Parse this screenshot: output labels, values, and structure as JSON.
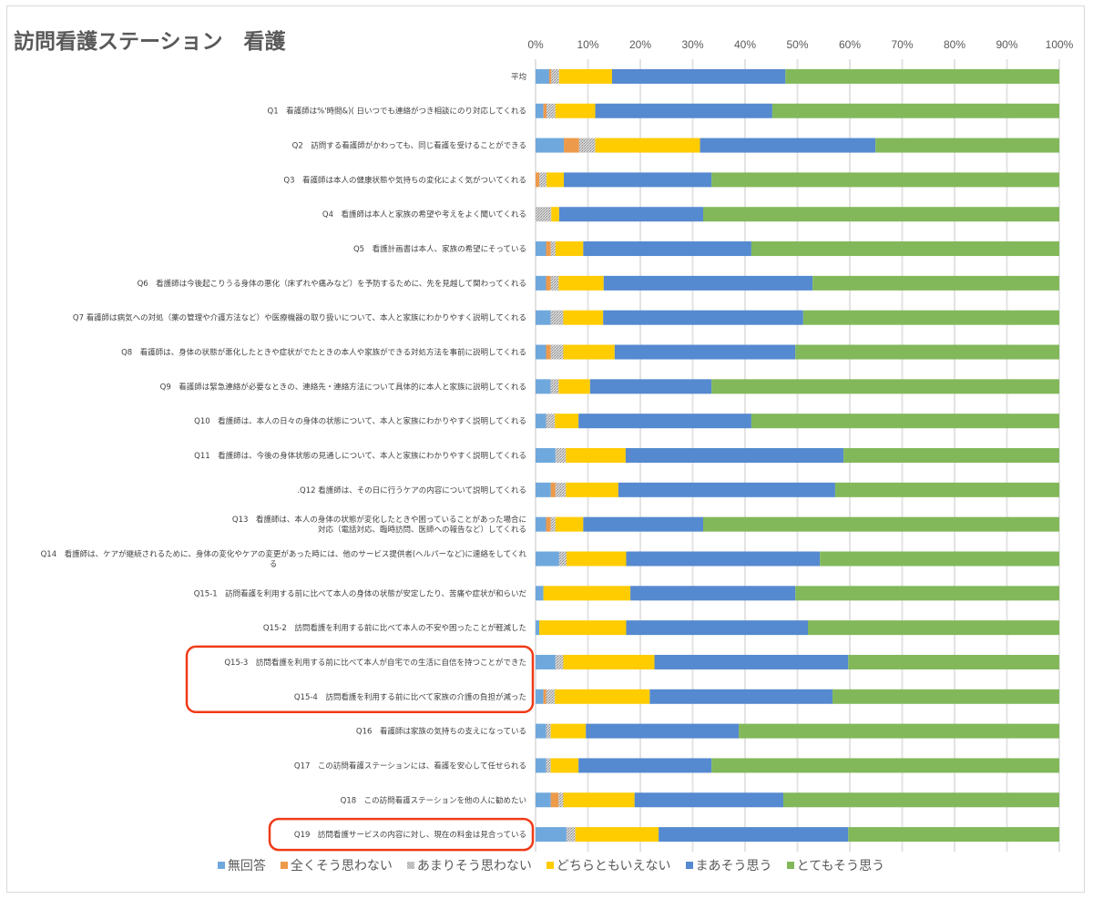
{
  "chart_data": {
    "type": "bar",
    "orientation": "horizontal-stacked-100",
    "title": "訪問看護ステーション　看護",
    "xlabel": "",
    "ylabel": "",
    "xlim": [
      0,
      100
    ],
    "x_ticks": [
      "0%",
      "10%",
      "20%",
      "30%",
      "40%",
      "50%",
      "60%",
      "70%",
      "80%",
      "90%",
      "100%"
    ],
    "grid": true,
    "legend_position": "bottom",
    "categories": [
      "平均",
      "Q1　看護師は%'時間&)( 日いつでも連絡がつき相談にのり対応してくれる",
      "Q2　訪問する看護師がかわっても、同じ看護を受けることができる",
      "Q3　看護師は本人の健康状態や気持ちの変化によく気がついてくれる",
      "Q4　看護師は本人と家族の希望や考えをよく聞いてくれる",
      "Q5　看護計画書は本人、家族の希望にそっている",
      "Q6　看護師は今後起こりうる身体の悪化（床ずれや痛みなど）を予防するために、先を見越して関わってくれる",
      "Q7 看護師は病気への対処（薬の管理や介護方法など）や医療機器の取り扱いについて、本人と家族にわかりやすく説明してくれる",
      "Q8　看護師は、身体の状態が悪化したときや症状がでたときの本人や家族ができる対処方法を事前に説明してくれる",
      "Q9　看護師は緊急連絡が必要なときの、連絡先・連絡方法について具体的に本人と家族に説明してくれる",
      "Q10　看護師は、本人の日々の身体の状態について、本人と家族にわかりやすく説明してくれる",
      "Q11　看護師は、今後の身体状態の見通しについて、本人と家族にわかりやすく説明してくれる",
      ".Q12 看護師は、その日に行うケアの内容について説明してくれる",
      "Q13　看護師は、本人の身体の状態が変化したときや困っていることがあった場合に\n対応（電話対応、臨時訪問、医師への報告など）してくれる",
      "Q14　看護師は、ケアが継続されるために、身体の変化やケアの変更があった時には、他のサービス提供者(ヘルパーなど)に連絡をしてくれ\nる",
      "Q15-1　訪問看護を利用する前に比べて本人の身体の状態が安定したり、苦痛や症状が和らいだ",
      "Q15-2　訪問看護を利用する前に比べて本人の不安や困ったことが軽減した",
      "Q15-3　訪問看護を利用する前に比べて本人が自宅での生活に自信を持つことができた",
      "Q15-4　訪問看護を利用する前に比べて家族の介護の負担が減った",
      "Q16　看護師は家族の気持ちの支えになっている",
      "Q17　この訪問看護ステーションには、看護を安心して任せられる",
      "Q18　この訪問看護ステーションを他の人に勧めたい",
      "Q19　訪問看護サービスの内容に対し、現在の料金は見合っている"
    ],
    "series": [
      {
        "name": "無回答",
        "color": "#6fa8dc",
        "values": [
          2.6,
          1.5,
          5.4,
          0,
          0,
          2.0,
          2.0,
          2.9,
          2.0,
          2.9,
          2.0,
          3.8,
          2.9,
          2.0,
          4.5,
          1.5,
          0.7,
          3.8,
          1.5,
          2.0,
          2.0,
          2.9,
          5.9
        ]
      },
      {
        "name": "全くそう思わない",
        "color": "#ed9a4b",
        "values": [
          0.4,
          0.6,
          2.9,
          0.7,
          0,
          0.9,
          0.9,
          0,
          0.9,
          0,
          0,
          0,
          0.9,
          0.9,
          0,
          0,
          0,
          0,
          0.5,
          0,
          0,
          1.5,
          0
        ]
      },
      {
        "name": "あまりそう思わない",
        "color": "#b3b3b3",
        "pattern": "dotted",
        "values": [
          1.5,
          1.7,
          3.1,
          1.4,
          3.0,
          0.9,
          1.5,
          2.4,
          2.4,
          1.5,
          1.7,
          2.0,
          2.0,
          0.9,
          1.4,
          0,
          0,
          1.5,
          1.7,
          0.9,
          0.9,
          0.9,
          1.7
        ]
      },
      {
        "name": "どちらともいえない",
        "color": "#ffcc00",
        "values": [
          10.1,
          7.6,
          20.0,
          3.3,
          1.5,
          5.3,
          8.6,
          7.6,
          9.8,
          6.0,
          4.5,
          11.4,
          10.0,
          5.3,
          11.4,
          16.6,
          16.6,
          17.4,
          18.1,
          6.7,
          5.3,
          13.6,
          15.9
        ]
      },
      {
        "name": "まあそう思う",
        "color": "#5589d0",
        "values": [
          33.1,
          33.8,
          33.5,
          28.2,
          27.5,
          32.1,
          39.9,
          38.2,
          34.5,
          23.2,
          33.0,
          41.6,
          41.4,
          22.9,
          37.0,
          31.5,
          34.7,
          37.0,
          34.9,
          29.2,
          25.4,
          28.4,
          36.2
        ]
      },
      {
        "name": "とてもそう思う",
        "color": "#82b85a",
        "values": [
          52.3,
          54.8,
          35.1,
          66.4,
          68.0,
          58.8,
          47.1,
          48.9,
          50.4,
          66.4,
          58.8,
          41.2,
          42.8,
          68.0,
          45.7,
          50.4,
          48.0,
          40.3,
          43.3,
          61.2,
          66.4,
          52.7,
          40.3
        ]
      }
    ],
    "annotations": [
      {
        "type": "highlight-box",
        "color": "#f03a17",
        "covers": [
          "Q15-3",
          "Q15-4"
        ]
      },
      {
        "type": "highlight-box",
        "color": "#f03a17",
        "covers": [
          "Q19"
        ]
      }
    ]
  }
}
